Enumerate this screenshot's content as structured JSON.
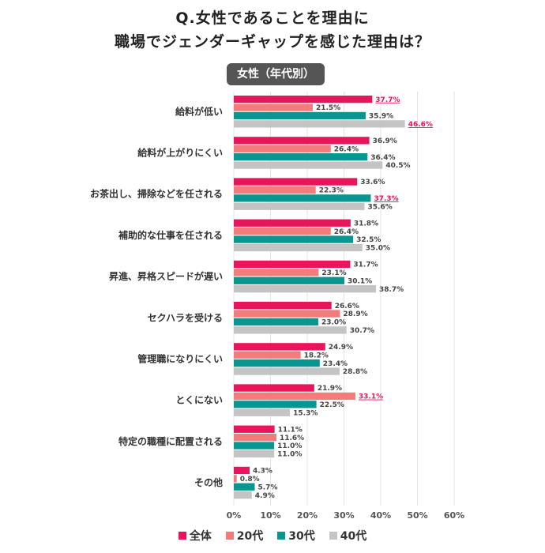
{
  "title_line1": "Q.女性であることを理由に",
  "title_line2": "職場でジェンダーギャップを感じた理由は？",
  "subtitle_badge": "女性（年代別）",
  "colors": {
    "全体": "#e8155a",
    "20代": "#f27b7b",
    "30代": "#0a9690",
    "40代": "#c4c4c4",
    "highlight_text": "#e8155a",
    "grid": "#e3e3e3"
  },
  "chart_data": {
    "type": "bar",
    "orientation": "horizontal",
    "categories": [
      "給料が低い",
      "給料が上がりにくい",
      "お茶出し、掃除などを任される",
      "補助的な仕事を任される",
      "昇進、昇格スピードが遅い",
      "セクハラを受ける",
      "管理職になりにくい",
      "とくにない",
      "特定の職種に配置される",
      "その他"
    ],
    "series": [
      {
        "name": "全体",
        "values": [
          37.7,
          36.9,
          33.6,
          31.8,
          31.7,
          26.6,
          24.9,
          21.9,
          11.1,
          4.3
        ]
      },
      {
        "name": "20代",
        "values": [
          21.5,
          26.4,
          22.3,
          26.4,
          23.1,
          28.9,
          18.2,
          33.1,
          11.6,
          0.8
        ]
      },
      {
        "name": "30代",
        "values": [
          35.9,
          36.4,
          37.3,
          32.5,
          30.1,
          23.0,
          23.4,
          22.5,
          11.0,
          5.7
        ]
      },
      {
        "name": "40代",
        "values": [
          46.6,
          40.5,
          35.6,
          35.0,
          38.7,
          30.7,
          28.8,
          15.3,
          11.0,
          4.9
        ]
      }
    ],
    "highlighted": [
      {
        "series": "全体",
        "category": "給料が低い"
      },
      {
        "series": "40代",
        "category": "給料が低い"
      },
      {
        "series": "30代",
        "category": "お茶出し、掃除などを任される"
      },
      {
        "series": "20代",
        "category": "とくにない"
      }
    ],
    "value_suffix": "%",
    "x_ticks": [
      "0%",
      "10%",
      "20%",
      "30%",
      "40%",
      "50%",
      "60%"
    ],
    "xlim": [
      0,
      60
    ],
    "grid": "vertical",
    "legend": "bottom-center"
  }
}
